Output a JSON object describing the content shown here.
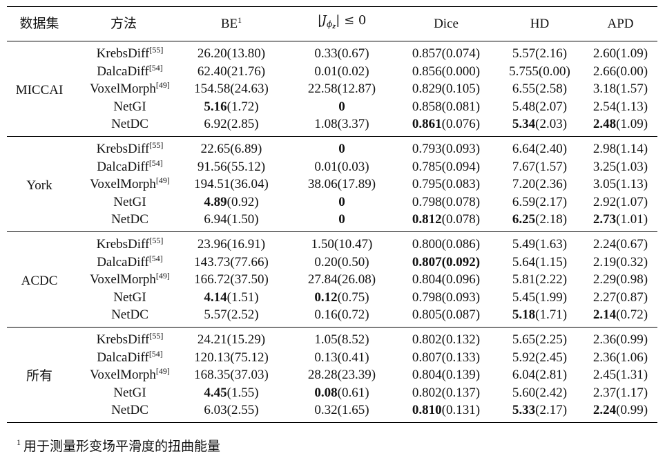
{
  "table": {
    "headers": {
      "dataset": "数据集",
      "method": "方法",
      "be": "BE",
      "be_sup": "1",
      "jac_J": "J",
      "jac_phi": "ϕ",
      "jac_z": "z",
      "jac_rest": "≤ 0",
      "dice": "Dice",
      "hd": "HD",
      "apd": "APD"
    },
    "groups": [
      {
        "name": "MICCAI",
        "rows": [
          {
            "method": "KrebsDiff",
            "ref": "[55]",
            "be": {
              "v": "26.20",
              "s": "(13.80)",
              "b": false
            },
            "jac": {
              "v": "0.33",
              "s": "(0.67)",
              "b": false
            },
            "dice": {
              "v": "0.857",
              "s": "(0.074)",
              "b": false
            },
            "hd": {
              "v": "5.57",
              "s": "(2.16)",
              "b": false
            },
            "apd": {
              "v": "2.60",
              "s": "(1.09)",
              "b": false
            }
          },
          {
            "method": "DalcaDiff",
            "ref": "[54]",
            "be": {
              "v": "62.40",
              "s": "(21.76)",
              "b": false
            },
            "jac": {
              "v": "0.01",
              "s": "(0.02)",
              "b": false
            },
            "dice": {
              "v": "0.856",
              "s": "(0.000)",
              "b": false
            },
            "hd": {
              "v": "5.755",
              "s": "(0.00)",
              "b": false
            },
            "apd": {
              "v": "2.66",
              "s": "(0.00)",
              "b": false
            }
          },
          {
            "method": "VoxelMorph",
            "ref": "[49]",
            "be": {
              "v": "154.58",
              "s": "(24.63)",
              "b": false
            },
            "jac": {
              "v": "22.58",
              "s": "(12.87)",
              "b": false
            },
            "dice": {
              "v": "0.829",
              "s": "(0.105)",
              "b": false
            },
            "hd": {
              "v": "6.55",
              "s": "(2.58)",
              "b": false
            },
            "apd": {
              "v": "3.18",
              "s": "(1.57)",
              "b": false
            }
          },
          {
            "method": "NetGI",
            "ref": "",
            "be": {
              "v": "5.16",
              "s": "(1.72)",
              "b": true
            },
            "jac": {
              "v": "0",
              "s": "",
              "b": true
            },
            "dice": {
              "v": "0.858",
              "s": "(0.081)",
              "b": false
            },
            "hd": {
              "v": "5.48",
              "s": "(2.07)",
              "b": false
            },
            "apd": {
              "v": "2.54",
              "s": "(1.13)",
              "b": false
            }
          },
          {
            "method": "NetDC",
            "ref": "",
            "be": {
              "v": "6.92",
              "s": "(2.85)",
              "b": false
            },
            "jac": {
              "v": "1.08",
              "s": "(3.37)",
              "b": false
            },
            "dice": {
              "v": "0.861",
              "s": "(0.076)",
              "b": true
            },
            "hd": {
              "v": "5.34",
              "s": "(2.03)",
              "b": true
            },
            "apd": {
              "v": "2.48",
              "s": "(1.09)",
              "b": true
            }
          }
        ]
      },
      {
        "name": "York",
        "rows": [
          {
            "method": "KrebsDiff",
            "ref": "[55]",
            "be": {
              "v": "22.65",
              "s": "(6.89)",
              "b": false
            },
            "jac": {
              "v": "0",
              "s": "",
              "b": true
            },
            "dice": {
              "v": "0.793",
              "s": "(0.093)",
              "b": false
            },
            "hd": {
              "v": "6.64",
              "s": "(2.40)",
              "b": false
            },
            "apd": {
              "v": "2.98",
              "s": "(1.14)",
              "b": false
            }
          },
          {
            "method": "DalcaDiff",
            "ref": "[54]",
            "be": {
              "v": "91.56",
              "s": "(55.12)",
              "b": false
            },
            "jac": {
              "v": "0.01",
              "s": "(0.03)",
              "b": false
            },
            "dice": {
              "v": "0.785",
              "s": "(0.094)",
              "b": false
            },
            "hd": {
              "v": "7.67",
              "s": "(1.57)",
              "b": false
            },
            "apd": {
              "v": "3.25",
              "s": "(1.03)",
              "b": false
            }
          },
          {
            "method": "VoxelMorph",
            "ref": "[49]",
            "be": {
              "v": "194.51",
              "s": "(36.04)",
              "b": false
            },
            "jac": {
              "v": "38.06",
              "s": "(17.89)",
              "b": false
            },
            "dice": {
              "v": "0.795",
              "s": "(0.083)",
              "b": false
            },
            "hd": {
              "v": "7.20",
              "s": "(2.36)",
              "b": false
            },
            "apd": {
              "v": "3.05",
              "s": "(1.13)",
              "b": false
            }
          },
          {
            "method": "NetGI",
            "ref": "",
            "be": {
              "v": "4.89",
              "s": "(0.92)",
              "b": true
            },
            "jac": {
              "v": "0",
              "s": "",
              "b": true
            },
            "dice": {
              "v": "0.798",
              "s": "(0.078)",
              "b": false
            },
            "hd": {
              "v": "6.59",
              "s": "(2.17)",
              "b": false
            },
            "apd": {
              "v": "2.92",
              "s": "(1.07)",
              "b": false
            }
          },
          {
            "method": "NetDC",
            "ref": "",
            "be": {
              "v": "6.94",
              "s": "(1.50)",
              "b": false
            },
            "jac": {
              "v": "0",
              "s": "",
              "b": true
            },
            "dice": {
              "v": "0.812",
              "s": "(0.078)",
              "b": true
            },
            "hd": {
              "v": "6.25",
              "s": "(2.18)",
              "b": true
            },
            "apd": {
              "v": "2.73",
              "s": "(1.01)",
              "b": true
            }
          }
        ]
      },
      {
        "name": "ACDC",
        "rows": [
          {
            "method": "KrebsDiff",
            "ref": "[55]",
            "be": {
              "v": "23.96",
              "s": "(16.91)",
              "b": false
            },
            "jac": {
              "v": "1.50",
              "s": "(10.47)",
              "b": false
            },
            "dice": {
              "v": "0.800",
              "s": "(0.086)",
              "b": false
            },
            "hd": {
              "v": "5.49",
              "s": "(1.63)",
              "b": false
            },
            "apd": {
              "v": "2.24",
              "s": "(0.67)",
              "b": false
            }
          },
          {
            "method": "DalcaDiff",
            "ref": "[54]",
            "be": {
              "v": "143.73",
              "s": "(77.66)",
              "b": false
            },
            "jac": {
              "v": "0.20",
              "s": "(0.50)",
              "b": false
            },
            "dice": {
              "v": "0.807",
              "s": "(0.092)",
              "b": true,
              "sb": true
            },
            "hd": {
              "v": "5.64",
              "s": "(1.15)",
              "b": false
            },
            "apd": {
              "v": "2.19",
              "s": "(0.32)",
              "b": false
            }
          },
          {
            "method": "VoxelMorph",
            "ref": "[49]",
            "be": {
              "v": "166.72",
              "s": "(37.50)",
              "b": false
            },
            "jac": {
              "v": "27.84",
              "s": "(26.08)",
              "b": false
            },
            "dice": {
              "v": "0.804",
              "s": "(0.096)",
              "b": false
            },
            "hd": {
              "v": "5.81",
              "s": "(2.22)",
              "b": false
            },
            "apd": {
              "v": "2.29",
              "s": "(0.98)",
              "b": false
            }
          },
          {
            "method": "NetGI",
            "ref": "",
            "be": {
              "v": "4.14",
              "s": "(1.51)",
              "b": true
            },
            "jac": {
              "v": "0.12",
              "s": "(0.75)",
              "b": true
            },
            "dice": {
              "v": "0.798",
              "s": "(0.093)",
              "b": false
            },
            "hd": {
              "v": "5.45",
              "s": "(1.99)",
              "b": false
            },
            "apd": {
              "v": "2.27",
              "s": "(0.87)",
              "b": false
            }
          },
          {
            "method": "NetDC",
            "ref": "",
            "be": {
              "v": "5.57",
              "s": "(2.52)",
              "b": false
            },
            "jac": {
              "v": "0.16",
              "s": "(0.72)",
              "b": false
            },
            "dice": {
              "v": "0.805",
              "s": "(0.087)",
              "b": false
            },
            "hd": {
              "v": "5.18",
              "s": "(1.71)",
              "b": true
            },
            "apd": {
              "v": "2.14",
              "s": "(0.72)",
              "b": true
            }
          }
        ]
      },
      {
        "name": "所有",
        "rows": [
          {
            "method": "KrebsDiff",
            "ref": "[55]",
            "be": {
              "v": "24.21",
              "s": "(15.29)",
              "b": false
            },
            "jac": {
              "v": "1.05",
              "s": "(8.52)",
              "b": false
            },
            "dice": {
              "v": "0.802",
              "s": "(0.132)",
              "b": false
            },
            "hd": {
              "v": "5.65",
              "s": "(2.25)",
              "b": false
            },
            "apd": {
              "v": "2.36",
              "s": "(0.99)",
              "b": false
            }
          },
          {
            "method": "DalcaDiff",
            "ref": "[54]",
            "be": {
              "v": "120.13",
              "s": "(75.12)",
              "b": false
            },
            "jac": {
              "v": "0.13",
              "s": "(0.41)",
              "b": false
            },
            "dice": {
              "v": "0.807",
              "s": "(0.133)",
              "b": false
            },
            "hd": {
              "v": "5.92",
              "s": "(2.45)",
              "b": false
            },
            "apd": {
              "v": "2.36",
              "s": "(1.06)",
              "b": false
            }
          },
          {
            "method": "VoxelMorph",
            "ref": "[49]",
            "be": {
              "v": "168.35",
              "s": "(37.03)",
              "b": false
            },
            "jac": {
              "v": "28.28",
              "s": "(23.39)",
              "b": false
            },
            "dice": {
              "v": "0.804",
              "s": "(0.139)",
              "b": false
            },
            "hd": {
              "v": "6.04",
              "s": "(2.81)",
              "b": false
            },
            "apd": {
              "v": "2.45",
              "s": "(1.31)",
              "b": false
            }
          },
          {
            "method": "NetGI",
            "ref": "",
            "be": {
              "v": "4.45",
              "s": "(1.55)",
              "b": true
            },
            "jac": {
              "v": "0.08",
              "s": "(0.61)",
              "b": true
            },
            "dice": {
              "v": "0.802",
              "s": "(0.137)",
              "b": false
            },
            "hd": {
              "v": "5.60",
              "s": "(2.42)",
              "b": false
            },
            "apd": {
              "v": "2.37",
              "s": "(1.17)",
              "b": false
            }
          },
          {
            "method": "NetDC",
            "ref": "",
            "be": {
              "v": "6.03",
              "s": "(2.55)",
              "b": false
            },
            "jac": {
              "v": "0.32",
              "s": "(1.65)",
              "b": false
            },
            "dice": {
              "v": "0.810",
              "s": "(0.131)",
              "b": true
            },
            "hd": {
              "v": "5.33",
              "s": "(2.17)",
              "b": true
            },
            "apd": {
              "v": "2.24",
              "s": "(0.99)",
              "b": true
            }
          }
        ]
      }
    ]
  },
  "footnote": {
    "mark": "1",
    "text": "用于测量形变场平滑度的扭曲能量"
  }
}
